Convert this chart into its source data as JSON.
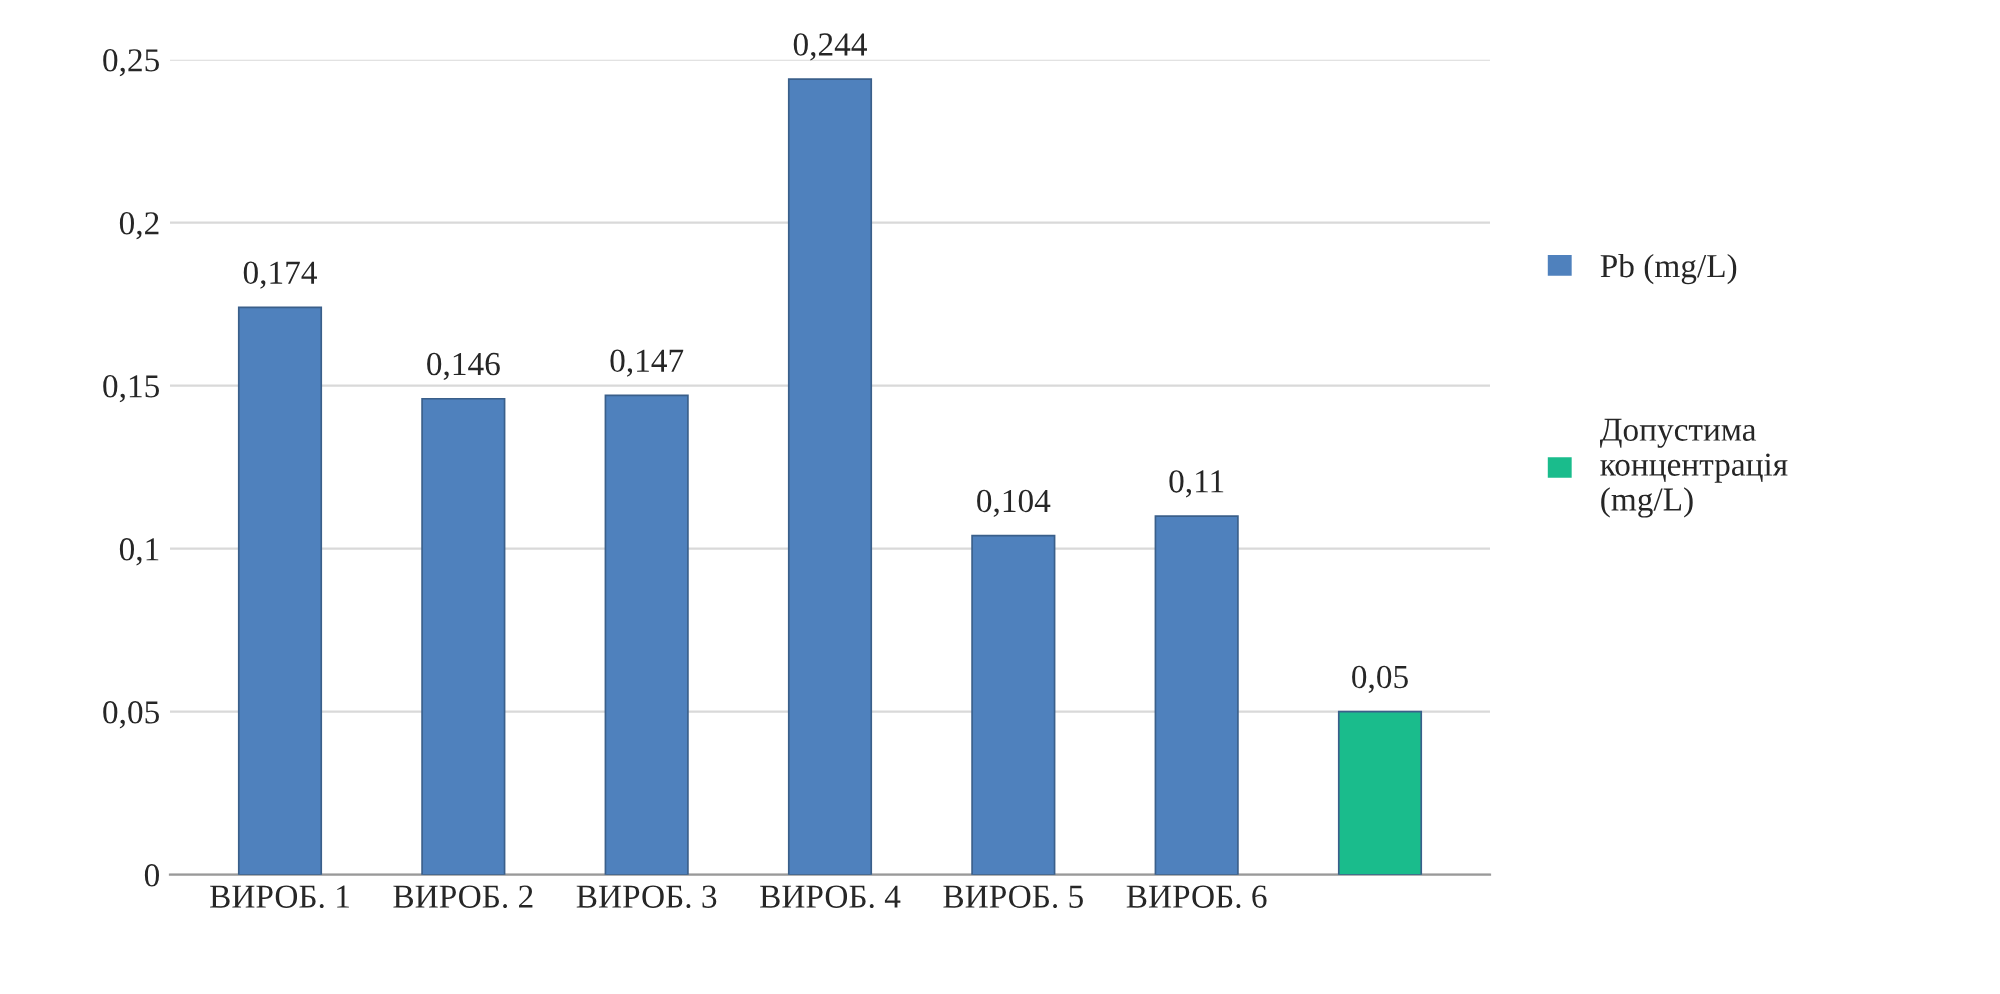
{
  "chart_data": {
    "type": "bar",
    "categories": [
      "ВИРОБ. 1",
      "ВИРОБ. 2",
      "ВИРОБ. 3",
      "ВИРОБ. 4",
      "ВИРОБ. 5",
      "ВИРОБ. 6",
      null
    ],
    "series": [
      {
        "name": "Pb (mg/L)",
        "color": "#4f81bd",
        "values": [
          0.174,
          0.146,
          0.147,
          0.244,
          0.104,
          0.11,
          null
        ],
        "value_labels": [
          "0,174",
          "0,146",
          "0,147",
          "0,244",
          "0,104",
          "0,11",
          null
        ]
      },
      {
        "name": "Допустима концентрація (mg/L)",
        "color": "#1abc8c",
        "values": [
          null,
          null,
          null,
          null,
          null,
          null,
          0.05
        ],
        "value_labels": [
          null,
          null,
          null,
          null,
          null,
          null,
          "0,05"
        ]
      }
    ],
    "ylim": [
      0,
      0.25
    ],
    "yticks": [
      {
        "value": 0,
        "label": "0"
      },
      {
        "value": 0.05,
        "label": "0,05"
      },
      {
        "value": 0.1,
        "label": "0,1"
      },
      {
        "value": 0.15,
        "label": "0,15"
      },
      {
        "value": 0.2,
        "label": "0,2"
      },
      {
        "value": 0.25,
        "label": "0,25"
      }
    ],
    "grid": "y",
    "legend": "right"
  }
}
